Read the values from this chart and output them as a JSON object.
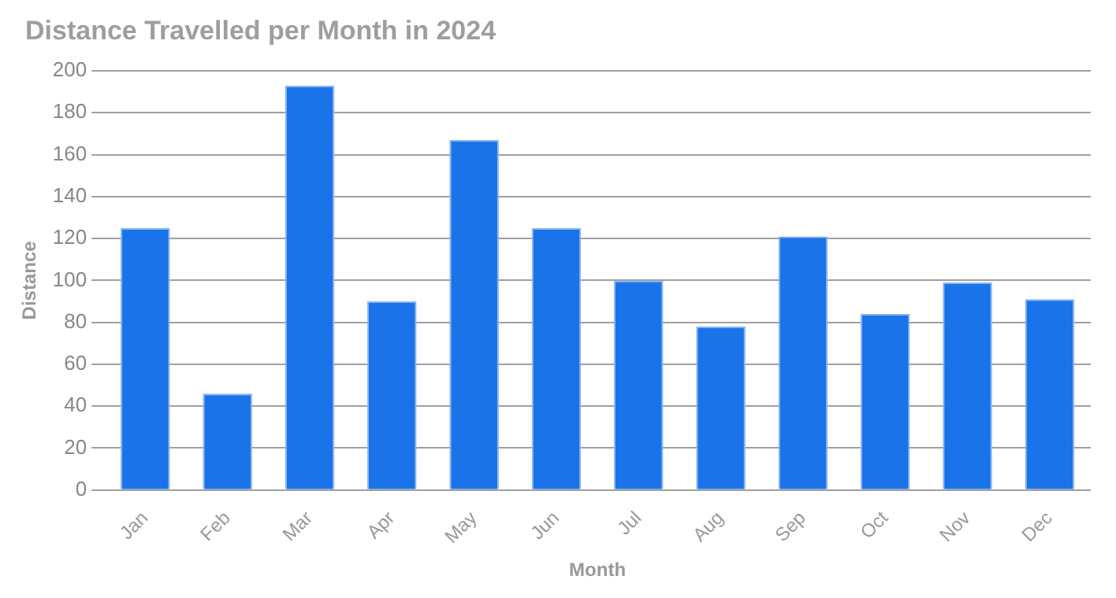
{
  "chart_data": {
    "type": "bar",
    "title": "Distance Travelled per Month in 2024",
    "xlabel": "Month",
    "ylabel": "Distance",
    "categories": [
      "Jan",
      "Feb",
      "Mar",
      "Apr",
      "May",
      "Jun",
      "Jul",
      "Aug",
      "Sep",
      "Oct",
      "Nov",
      "Dec"
    ],
    "values": [
      125,
      46,
      193,
      90,
      167,
      125,
      100,
      78,
      121,
      84,
      99,
      91
    ],
    "color": "#1a73e8",
    "ylim": [
      0,
      200
    ],
    "yticks": [
      0,
      20,
      40,
      60,
      80,
      100,
      120,
      140,
      160,
      180,
      200
    ],
    "grid": "y",
    "legend": false
  }
}
